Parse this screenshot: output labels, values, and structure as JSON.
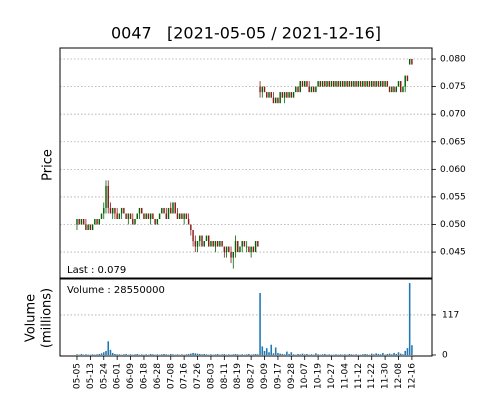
{
  "chart_data": {
    "type": "candlestick",
    "title": "0047   [2021-05-05 / 2021-12-16]",
    "ylabel": "Price",
    "volume_ylabel": [
      "Volume",
      "(millions)"
    ],
    "last_label": "Last : 0.079",
    "volume_label": "Volume : 28550000",
    "up_color": "#006400",
    "down_color": "#8b1a1a",
    "volume_color": "#1f77b4",
    "grid": true,
    "xlim": [
      -7.6,
      159
    ],
    "xticks": [
      {
        "value": 0,
        "label": "05-05"
      },
      {
        "value": 6,
        "label": "05-13"
      },
      {
        "value": 12,
        "label": "05-24"
      },
      {
        "value": 18,
        "label": "06-01"
      },
      {
        "value": 24,
        "label": "06-09"
      },
      {
        "value": 30,
        "label": "06-18"
      },
      {
        "value": 36,
        "label": "06-28"
      },
      {
        "value": 42,
        "label": "07-08"
      },
      {
        "value": 48,
        "label": "07-16"
      },
      {
        "value": 54,
        "label": "07-26"
      },
      {
        "value": 60,
        "label": "08-03"
      },
      {
        "value": 66,
        "label": "08-11"
      },
      {
        "value": 72,
        "label": "08-19"
      },
      {
        "value": 78,
        "label": "08-27"
      },
      {
        "value": 84,
        "label": "09-09"
      },
      {
        "value": 90,
        "label": "09-17"
      },
      {
        "value": 96,
        "label": "09-28"
      },
      {
        "value": 102,
        "label": "10-07"
      },
      {
        "value": 108,
        "label": "10-19"
      },
      {
        "value": 114,
        "label": "10-27"
      },
      {
        "value": 120,
        "label": "11-04"
      },
      {
        "value": 126,
        "label": "11-12"
      },
      {
        "value": 132,
        "label": "11-22"
      },
      {
        "value": 138,
        "label": "11-30"
      },
      {
        "value": 144,
        "label": "12-08"
      },
      {
        "value": 150,
        "label": "12-16"
      }
    ],
    "ylim": [
      0.0403,
      0.082
    ],
    "yticks": [
      0.045,
      {
        "value": 0.05,
        "label": "0.050"
      },
      0.055,
      {
        "value": 0.06,
        "label": "0.060"
      },
      0.065,
      {
        "value": 0.07,
        "label": "0.070"
      },
      0.075,
      {
        "value": 0.08,
        "label": "0.080"
      }
    ],
    "volume_ylim": [
      0,
      219
    ],
    "volume_yticks": [
      0,
      117
    ],
    "ohlc": [
      [
        0.05,
        0.051,
        0.049,
        0.051
      ],
      [
        0.051,
        0.051,
        0.05,
        0.05
      ],
      [
        0.05,
        0.051,
        0.05,
        0.051
      ],
      [
        0.051,
        0.051,
        0.05,
        0.05
      ],
      [
        0.05,
        0.051,
        0.049,
        0.049
      ],
      [
        0.049,
        0.05,
        0.049,
        0.05
      ],
      [
        0.05,
        0.05,
        0.049,
        0.049
      ],
      [
        0.049,
        0.05,
        0.049,
        0.05
      ],
      [
        0.05,
        0.051,
        0.05,
        0.051
      ],
      [
        0.051,
        0.051,
        0.05,
        0.05
      ],
      [
        0.05,
        0.051,
        0.05,
        0.051
      ],
      [
        0.051,
        0.052,
        0.051,
        0.052
      ],
      [
        0.052,
        0.054,
        0.051,
        0.053
      ],
      [
        0.053,
        0.058,
        0.052,
        0.057
      ],
      [
        0.057,
        0.058,
        0.052,
        0.053
      ],
      [
        0.053,
        0.054,
        0.052,
        0.052
      ],
      [
        0.052,
        0.053,
        0.051,
        0.053
      ],
      [
        0.053,
        0.053,
        0.051,
        0.052
      ],
      [
        0.052,
        0.053,
        0.051,
        0.051
      ],
      [
        0.051,
        0.052,
        0.051,
        0.052
      ],
      [
        0.052,
        0.053,
        0.051,
        0.053
      ],
      [
        0.053,
        0.053,
        0.052,
        0.052
      ],
      [
        0.052,
        0.052,
        0.051,
        0.051
      ],
      [
        0.051,
        0.052,
        0.05,
        0.052
      ],
      [
        0.052,
        0.052,
        0.051,
        0.051
      ],
      [
        0.051,
        0.052,
        0.05,
        0.05
      ],
      [
        0.05,
        0.051,
        0.05,
        0.051
      ],
      [
        0.051,
        0.052,
        0.051,
        0.052
      ],
      [
        0.052,
        0.053,
        0.051,
        0.053
      ],
      [
        0.053,
        0.053,
        0.052,
        0.052
      ],
      [
        0.052,
        0.052,
        0.051,
        0.051
      ],
      [
        0.051,
        0.052,
        0.051,
        0.052
      ],
      [
        0.052,
        0.052,
        0.051,
        0.051
      ],
      [
        0.051,
        0.052,
        0.05,
        0.052
      ],
      [
        0.052,
        0.052,
        0.051,
        0.051
      ],
      [
        0.051,
        0.051,
        0.05,
        0.05
      ],
      [
        0.05,
        0.051,
        0.05,
        0.051
      ],
      [
        0.051,
        0.052,
        0.051,
        0.052
      ],
      [
        0.052,
        0.053,
        0.052,
        0.053
      ],
      [
        0.053,
        0.053,
        0.052,
        0.052
      ],
      [
        0.052,
        0.053,
        0.051,
        0.051
      ],
      [
        0.051,
        0.053,
        0.051,
        0.053
      ],
      [
        0.053,
        0.054,
        0.052,
        0.052
      ],
      [
        0.052,
        0.054,
        0.052,
        0.054
      ],
      [
        0.054,
        0.054,
        0.052,
        0.052
      ],
      [
        0.052,
        0.053,
        0.051,
        0.051
      ],
      [
        0.051,
        0.052,
        0.051,
        0.052
      ],
      [
        0.052,
        0.052,
        0.051,
        0.051
      ],
      [
        0.051,
        0.052,
        0.05,
        0.052
      ],
      [
        0.052,
        0.052,
        0.051,
        0.051
      ],
      [
        0.051,
        0.052,
        0.05,
        0.05
      ],
      [
        0.05,
        0.05,
        0.048,
        0.049
      ],
      [
        0.049,
        0.049,
        0.046,
        0.047
      ],
      [
        0.047,
        0.048,
        0.045,
        0.046
      ],
      [
        0.046,
        0.047,
        0.045,
        0.047
      ],
      [
        0.047,
        0.048,
        0.046,
        0.048
      ],
      [
        0.048,
        0.048,
        0.046,
        0.046
      ],
      [
        0.046,
        0.047,
        0.046,
        0.047
      ],
      [
        0.047,
        0.048,
        0.047,
        0.048
      ],
      [
        0.048,
        0.048,
        0.046,
        0.046
      ],
      [
        0.046,
        0.047,
        0.046,
        0.047
      ],
      [
        0.047,
        0.047,
        0.046,
        0.046
      ],
      [
        0.046,
        0.047,
        0.045,
        0.047
      ],
      [
        0.047,
        0.047,
        0.046,
        0.046
      ],
      [
        0.046,
        0.047,
        0.046,
        0.047
      ],
      [
        0.047,
        0.047,
        0.046,
        0.046
      ],
      [
        0.046,
        0.046,
        0.044,
        0.045
      ],
      [
        0.045,
        0.046,
        0.044,
        0.046
      ],
      [
        0.046,
        0.046,
        0.045,
        0.045
      ],
      [
        0.045,
        0.046,
        0.043,
        0.044
      ],
      [
        0.044,
        0.045,
        0.042,
        0.045
      ],
      [
        0.045,
        0.048,
        0.044,
        0.047
      ],
      [
        0.047,
        0.047,
        0.045,
        0.045
      ],
      [
        0.045,
        0.046,
        0.045,
        0.046
      ],
      [
        0.046,
        0.047,
        0.045,
        0.047
      ],
      [
        0.047,
        0.047,
        0.046,
        0.046
      ],
      [
        0.046,
        0.047,
        0.045,
        0.046
      ],
      [
        0.046,
        0.046,
        0.045,
        0.045
      ],
      [
        0.045,
        0.046,
        0.044,
        0.046
      ],
      [
        0.046,
        0.046,
        0.045,
        0.045
      ],
      [
        0.045,
        0.047,
        0.045,
        0.047
      ],
      [
        0.047,
        0.047,
        0.046,
        0.046
      ],
      [
        0.075,
        0.076,
        0.073,
        0.074
      ],
      [
        0.074,
        0.075,
        0.073,
        0.075
      ],
      [
        0.075,
        0.075,
        0.074,
        0.074
      ],
      [
        0.074,
        0.074,
        0.073,
        0.073
      ],
      [
        0.073,
        0.074,
        0.073,
        0.074
      ],
      [
        0.074,
        0.074,
        0.073,
        0.073
      ],
      [
        0.073,
        0.074,
        0.072,
        0.072
      ],
      [
        0.072,
        0.073,
        0.072,
        0.073
      ],
      [
        0.073,
        0.073,
        0.072,
        0.072
      ],
      [
        0.072,
        0.074,
        0.072,
        0.074
      ],
      [
        0.074,
        0.074,
        0.073,
        0.073
      ],
      [
        0.073,
        0.074,
        0.072,
        0.074
      ],
      [
        0.074,
        0.074,
        0.073,
        0.073
      ],
      [
        0.073,
        0.074,
        0.073,
        0.074
      ],
      [
        0.074,
        0.074,
        0.073,
        0.073
      ],
      [
        0.073,
        0.074,
        0.073,
        0.074
      ],
      [
        0.074,
        0.075,
        0.074,
        0.075
      ],
      [
        0.075,
        0.075,
        0.074,
        0.074
      ],
      [
        0.074,
        0.076,
        0.074,
        0.076
      ],
      [
        0.076,
        0.076,
        0.075,
        0.075
      ],
      [
        0.075,
        0.076,
        0.075,
        0.076
      ],
      [
        0.076,
        0.076,
        0.075,
        0.075
      ],
      [
        0.075,
        0.076,
        0.074,
        0.074
      ],
      [
        0.074,
        0.075,
        0.074,
        0.075
      ],
      [
        0.075,
        0.075,
        0.074,
        0.074
      ],
      [
        0.074,
        0.075,
        0.074,
        0.075
      ],
      [
        0.075,
        0.076,
        0.075,
        0.076
      ],
      [
        0.076,
        0.076,
        0.075,
        0.075
      ],
      [
        0.075,
        0.076,
        0.075,
        0.076
      ],
      [
        0.076,
        0.076,
        0.075,
        0.075
      ],
      [
        0.075,
        0.076,
        0.075,
        0.076
      ],
      [
        0.076,
        0.076,
        0.075,
        0.075
      ],
      [
        0.075,
        0.076,
        0.075,
        0.076
      ],
      [
        0.076,
        0.076,
        0.075,
        0.075
      ],
      [
        0.075,
        0.076,
        0.075,
        0.076
      ],
      [
        0.076,
        0.076,
        0.075,
        0.075
      ],
      [
        0.075,
        0.076,
        0.075,
        0.076
      ],
      [
        0.076,
        0.076,
        0.075,
        0.075
      ],
      [
        0.075,
        0.076,
        0.075,
        0.076
      ],
      [
        0.076,
        0.076,
        0.075,
        0.075
      ],
      [
        0.075,
        0.076,
        0.075,
        0.076
      ],
      [
        0.076,
        0.076,
        0.075,
        0.075
      ],
      [
        0.075,
        0.076,
        0.075,
        0.076
      ],
      [
        0.076,
        0.076,
        0.075,
        0.075
      ],
      [
        0.075,
        0.076,
        0.075,
        0.076
      ],
      [
        0.076,
        0.076,
        0.075,
        0.075
      ],
      [
        0.075,
        0.076,
        0.075,
        0.076
      ],
      [
        0.076,
        0.076,
        0.075,
        0.075
      ],
      [
        0.075,
        0.076,
        0.075,
        0.076
      ],
      [
        0.076,
        0.076,
        0.075,
        0.075
      ],
      [
        0.075,
        0.076,
        0.075,
        0.076
      ],
      [
        0.076,
        0.076,
        0.075,
        0.075
      ],
      [
        0.075,
        0.076,
        0.075,
        0.076
      ],
      [
        0.076,
        0.076,
        0.075,
        0.075
      ],
      [
        0.075,
        0.076,
        0.075,
        0.076
      ],
      [
        0.076,
        0.076,
        0.075,
        0.075
      ],
      [
        0.075,
        0.076,
        0.075,
        0.076
      ],
      [
        0.076,
        0.076,
        0.075,
        0.075
      ],
      [
        0.075,
        0.075,
        0.074,
        0.074
      ],
      [
        0.074,
        0.075,
        0.074,
        0.075
      ],
      [
        0.075,
        0.075,
        0.074,
        0.074
      ],
      [
        0.074,
        0.075,
        0.074,
        0.075
      ],
      [
        0.075,
        0.076,
        0.075,
        0.076
      ],
      [
        0.076,
        0.076,
        0.074,
        0.074
      ],
      [
        0.074,
        0.075,
        0.074,
        0.075
      ],
      [
        0.075,
        0.077,
        0.074,
        0.077
      ],
      [
        0.077,
        0.077,
        0.076,
        0.076
      ],
      [
        0.079,
        0.08,
        0.079,
        0.08
      ],
      [
        0.08,
        0.08,
        0.079,
        0.079
      ]
    ],
    "volume": [
      2,
      1,
      3,
      1,
      2,
      1,
      1,
      2,
      1,
      2,
      3,
      5,
      8,
      12,
      40,
      15,
      6,
      3,
      2,
      2,
      1,
      2,
      3,
      1,
      2,
      1,
      2,
      3,
      1,
      2,
      1,
      2,
      1,
      3,
      2,
      1,
      2,
      1,
      2,
      3,
      2,
      1,
      3,
      2,
      1,
      2,
      1,
      2,
      1,
      2,
      3,
      4,
      6,
      5,
      4,
      3,
      2,
      3,
      2,
      1,
      2,
      1,
      2,
      3,
      1,
      2,
      3,
      1,
      2,
      1,
      2,
      3,
      2,
      1,
      2,
      1,
      2,
      3,
      1,
      2,
      3,
      2,
      181,
      25,
      12,
      20,
      8,
      30,
      5,
      22,
      6,
      4,
      3,
      2,
      10,
      3,
      8,
      2,
      1,
      3,
      2,
      4,
      2,
      3,
      1,
      2,
      1,
      5,
      2,
      1,
      2,
      3,
      1,
      2,
      1,
      1,
      2,
      1,
      2,
      1,
      2,
      1,
      3,
      2,
      1,
      2,
      1,
      1,
      2,
      3,
      2,
      1,
      4,
      2,
      5,
      3,
      2,
      6,
      1,
      3,
      4,
      2,
      6,
      3,
      8,
      4,
      2,
      12,
      20,
      210,
      28.55
    ]
  }
}
